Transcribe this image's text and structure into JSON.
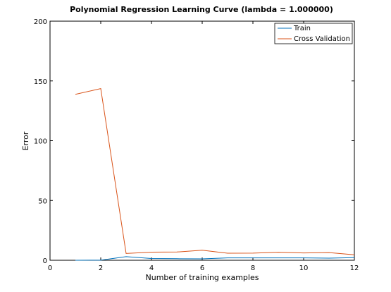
{
  "chart_data": {
    "type": "line",
    "title": "Polynomial Regression Learning Curve (lambda = 1.000000)",
    "xlabel": "Number of training examples",
    "ylabel": "Error",
    "xlim": [
      0,
      12
    ],
    "ylim": [
      0,
      200
    ],
    "xticks": [
      0,
      2,
      4,
      6,
      8,
      10,
      12
    ],
    "yticks": [
      0,
      50,
      100,
      150,
      200
    ],
    "legend_position": "top-right",
    "grid": false,
    "series": [
      {
        "name": "Train",
        "color": "#0072bd",
        "x": [
          1,
          2,
          3,
          4,
          5,
          6,
          7,
          8,
          9,
          10,
          11,
          12
        ],
        "y": [
          0.0,
          0.1,
          3.0,
          1.5,
          1.3,
          1.2,
          2.0,
          2.0,
          2.0,
          2.0,
          1.8,
          2.2
        ]
      },
      {
        "name": "Cross Validation",
        "color": "#d95319",
        "x": [
          1,
          2,
          3,
          4,
          5,
          6,
          7,
          8,
          9,
          10,
          11,
          12
        ],
        "y": [
          138.8,
          143.6,
          5.7,
          6.8,
          6.9,
          8.4,
          5.9,
          6.0,
          6.7,
          6.1,
          6.4,
          4.6
        ]
      }
    ]
  }
}
